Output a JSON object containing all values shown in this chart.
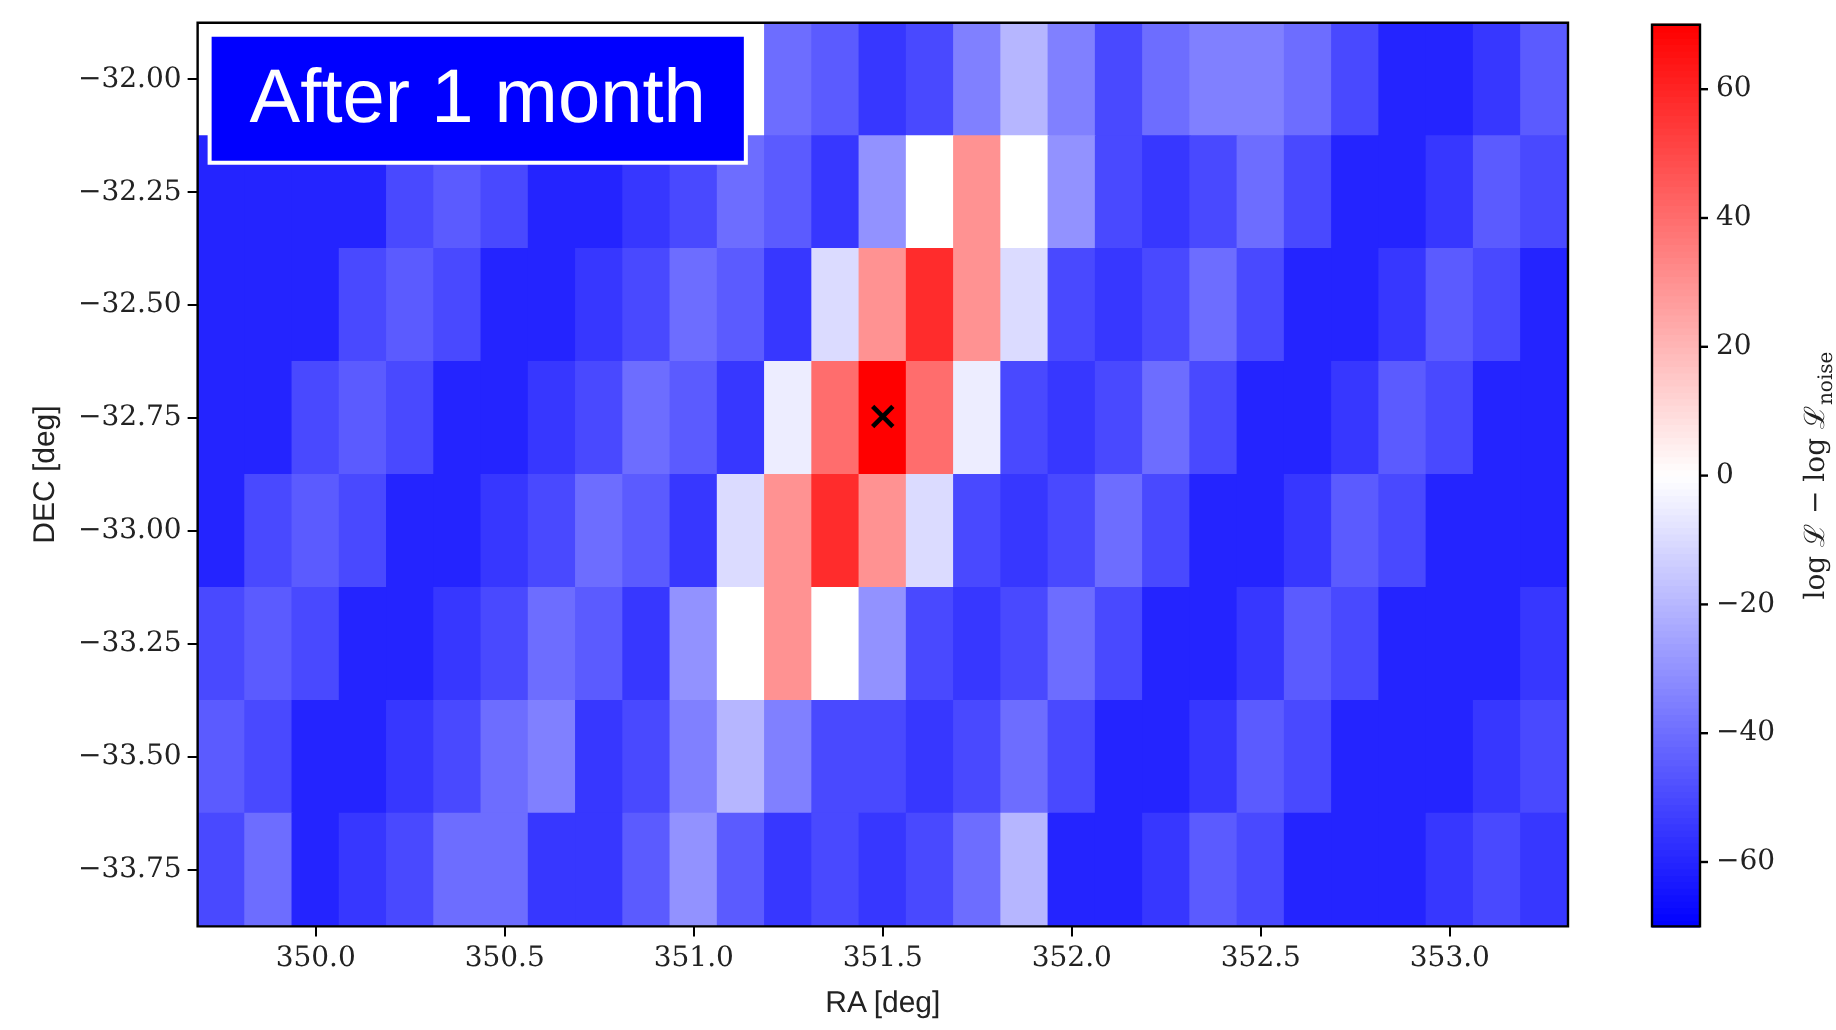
{
  "chart_data": {
    "type": "heatmap",
    "xlabel": "RA [deg]",
    "ylabel": "DEC [deg]",
    "clabel": "log ℒ − log ℒ$_{noise}$",
    "categories": [
      null,
      null,
      "350.0",
      null,
      null,
      null,
      "350.5",
      null,
      null,
      null,
      "351.0",
      null,
      null,
      null,
      "351.5",
      null,
      null,
      null,
      "352.0",
      null,
      null,
      null,
      "352.5",
      null,
      null,
      null,
      "353.0",
      null,
      null
    ],
    "y_categories": [
      "−32.00",
      "−32.25",
      "−32.50",
      "−32.75",
      "−33.00",
      "−33.25",
      "−33.50",
      "−33.75"
    ],
    "cells": [
      [
        null,
        null,
        null,
        null,
        null,
        null,
        null,
        null,
        null,
        null,
        null,
        null,
        -40,
        -45,
        -55,
        -50,
        -35,
        -20,
        -35,
        -50,
        -40,
        -35,
        -35,
        -40,
        -50,
        -60,
        -60,
        -55,
        -45
      ],
      [
        -60,
        -60,
        -60,
        -60,
        -50,
        -45,
        -50,
        -60,
        -60,
        -55,
        -50,
        -40,
        -45,
        -55,
        -30,
        0,
        30,
        0,
        -30,
        -50,
        -55,
        -50,
        -40,
        -50,
        -60,
        -60,
        -55,
        -45,
        -50
      ],
      [
        -60,
        -60,
        -60,
        -50,
        -45,
        -50,
        -60,
        -60,
        -55,
        -50,
        -40,
        -45,
        -55,
        -10,
        30,
        58,
        30,
        -10,
        -50,
        -55,
        -50,
        -40,
        -50,
        -60,
        -60,
        -55,
        -45,
        -50,
        -60
      ],
      [
        -60,
        -60,
        -50,
        -45,
        -50,
        -60,
        -60,
        -55,
        -50,
        -40,
        -45,
        -55,
        -5,
        40,
        70,
        40,
        -5,
        -50,
        -55,
        -50,
        -40,
        -50,
        -60,
        -60,
        -55,
        -45,
        -50,
        -60,
        -60
      ],
      [
        -60,
        -50,
        -45,
        -50,
        -60,
        -60,
        -55,
        -50,
        -40,
        -45,
        -55,
        -10,
        30,
        58,
        30,
        -10,
        -50,
        -55,
        -50,
        -40,
        -50,
        -60,
        -60,
        -55,
        -45,
        -50,
        -60,
        -60,
        -60
      ],
      [
        -50,
        -45,
        -50,
        -60,
        -60,
        -55,
        -50,
        -40,
        -45,
        -55,
        -30,
        0,
        30,
        0,
        -30,
        -50,
        -55,
        -50,
        -40,
        -50,
        -60,
        -60,
        -55,
        -45,
        -50,
        -60,
        -60,
        -60,
        -55
      ],
      [
        -45,
        -50,
        -60,
        -60,
        -55,
        -50,
        -40,
        -35,
        -55,
        -50,
        -35,
        -20,
        -35,
        -50,
        -50,
        -55,
        -50,
        -40,
        -50,
        -60,
        -60,
        -55,
        -45,
        -50,
        -60,
        -60,
        -60,
        -55,
        -50
      ],
      [
        -50,
        -40,
        -60,
        -55,
        -50,
        -40,
        -40,
        -55,
        -55,
        -45,
        -30,
        -45,
        -55,
        -50,
        -55,
        -50,
        -40,
        -20,
        -60,
        -60,
        -55,
        -45,
        -50,
        -60,
        -60,
        -60,
        -55,
        -50,
        -55
      ]
    ],
    "clim": [
      -70,
      70
    ],
    "cticks": [
      {
        "value": -60,
        "label": "−60"
      },
      {
        "value": -40,
        "label": "−40"
      },
      {
        "value": -20,
        "label": "−20"
      },
      0,
      20,
      40,
      60
    ],
    "annotations": [
      "After 1 month",
      "×"
    ]
  }
}
